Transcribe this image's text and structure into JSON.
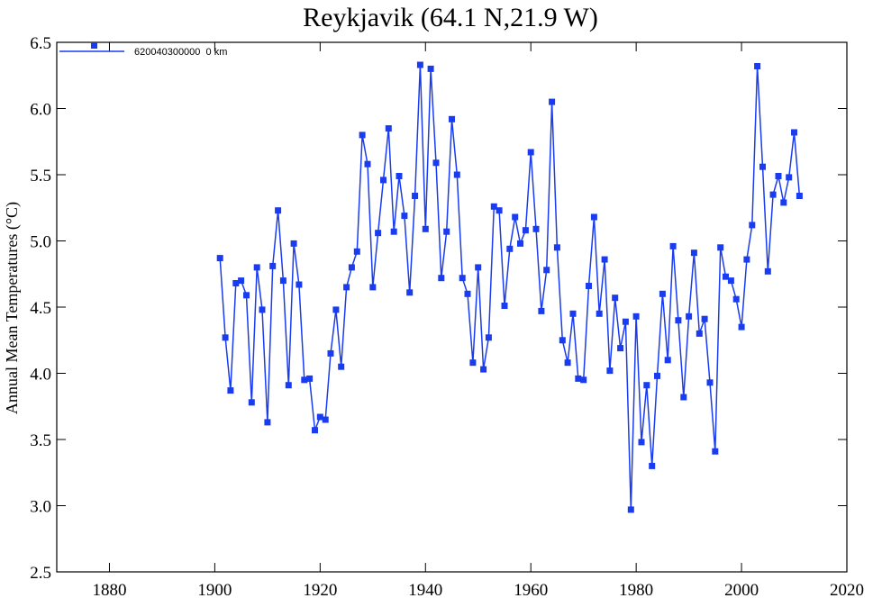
{
  "chart_data": {
    "type": "line",
    "title": "Reykjavik (64.1 N,21.9 W)",
    "xlabel": "",
    "ylabel": "Annual Mean Temperatures (°C)",
    "xlim": [
      1870,
      2020
    ],
    "ylim": [
      2.5,
      6.5
    ],
    "xticks": [
      1880,
      1900,
      1920,
      1940,
      1960,
      1980,
      2000,
      2020
    ],
    "yticks": [
      "2.5",
      "3.0",
      "3.5",
      "4.0",
      "4.5",
      "5.0",
      "5.5",
      "6.0",
      "6.5"
    ],
    "grid": false,
    "legend_position": "top-left",
    "color": "#1a3cf0",
    "series": [
      {
        "name": "620040300000  0 km",
        "x": [
          1901,
          1902,
          1903,
          1904,
          1905,
          1906,
          1907,
          1908,
          1909,
          1910,
          1911,
          1912,
          1913,
          1914,
          1915,
          1916,
          1917,
          1918,
          1919,
          1920,
          1921,
          1922,
          1923,
          1924,
          1925,
          1926,
          1927,
          1928,
          1929,
          1930,
          1931,
          1932,
          1933,
          1934,
          1935,
          1936,
          1937,
          1938,
          1939,
          1940,
          1941,
          1942,
          1943,
          1944,
          1945,
          1946,
          1947,
          1948,
          1949,
          1950,
          1951,
          1952,
          1953,
          1954,
          1955,
          1956,
          1957,
          1958,
          1959,
          1960,
          1961,
          1962,
          1963,
          1964,
          1965,
          1966,
          1967,
          1968,
          1969,
          1970,
          1971,
          1972,
          1973,
          1974,
          1975,
          1976,
          1977,
          1978,
          1979,
          1980,
          1981,
          1982,
          1983,
          1984,
          1985,
          1986,
          1987,
          1988,
          1989,
          1990,
          1991,
          1992,
          1993,
          1994,
          1995,
          1996,
          1997,
          1998,
          1999,
          2000,
          2001,
          2002,
          2003,
          2004,
          2005,
          2006,
          2007,
          2008,
          2009,
          2010,
          2011
        ],
        "y": [
          4.87,
          4.27,
          3.87,
          4.68,
          4.7,
          4.59,
          3.78,
          4.8,
          4.48,
          3.63,
          4.81,
          5.23,
          4.7,
          3.91,
          4.98,
          4.67,
          3.95,
          3.96,
          3.57,
          3.67,
          3.65,
          4.15,
          4.48,
          4.05,
          4.65,
          4.8,
          4.92,
          5.8,
          5.58,
          4.65,
          5.06,
          5.46,
          5.85,
          5.07,
          5.49,
          5.19,
          4.61,
          5.34,
          6.33,
          5.09,
          6.3,
          5.59,
          4.72,
          5.07,
          5.92,
          5.5,
          4.72,
          4.6,
          4.08,
          4.8,
          4.03,
          4.27,
          5.26,
          5.23,
          4.51,
          4.94,
          5.18,
          4.98,
          5.08,
          5.67,
          5.09,
          4.47,
          4.78,
          6.05,
          4.95,
          4.25,
          4.08,
          4.45,
          3.96,
          3.95,
          4.66,
          5.18,
          4.45,
          4.86,
          4.02,
          4.57,
          4.19,
          4.39,
          2.97,
          4.43,
          3.48,
          3.91,
          3.3,
          3.98,
          4.6,
          4.1,
          4.96,
          4.4,
          3.82,
          4.43,
          4.91,
          4.3,
          4.41,
          3.93,
          3.41,
          4.95,
          4.73,
          4.7,
          4.56,
          4.35,
          4.86,
          5.12,
          6.32,
          5.56,
          4.77,
          5.35,
          5.49,
          5.29,
          5.48,
          5.82,
          5.34
        ]
      }
    ]
  }
}
